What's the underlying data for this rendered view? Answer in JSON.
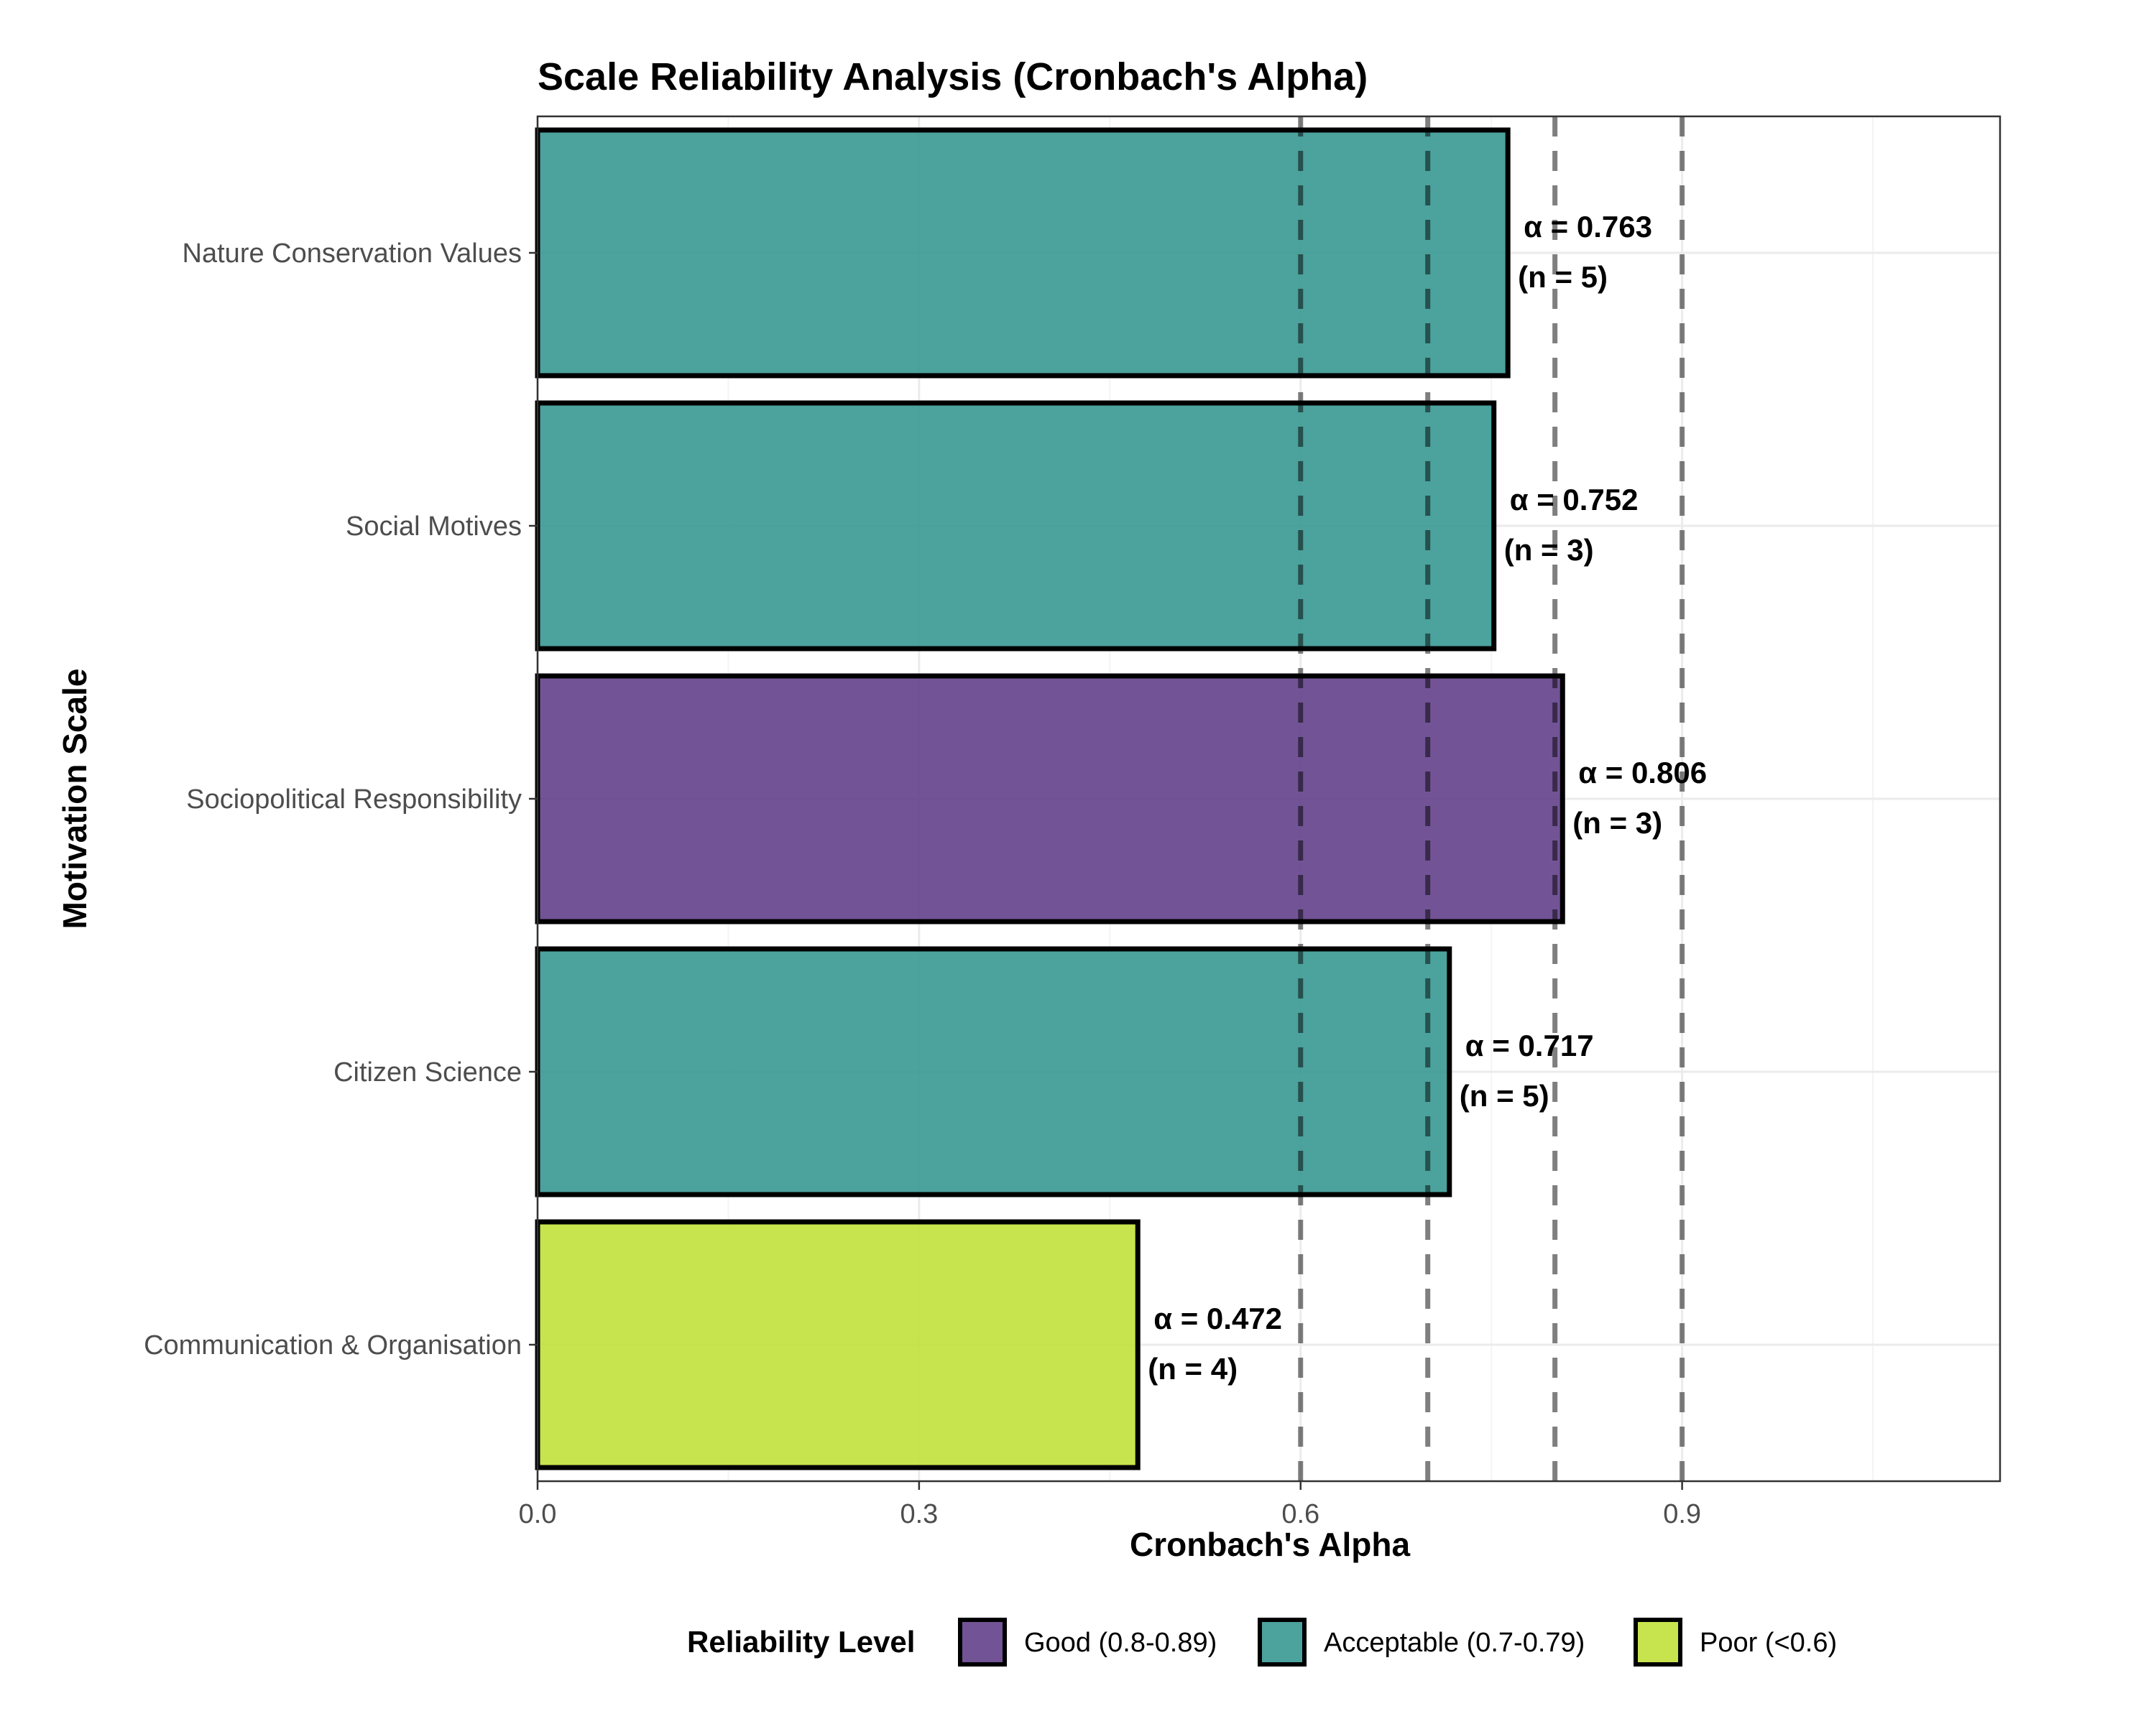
{
  "chart_data": {
    "type": "bar",
    "orientation": "horizontal",
    "title": "Scale Reliability Analysis (Cronbach's Alpha)",
    "xlabel": "Cronbach's Alpha",
    "ylabel": "Motivation Scale",
    "xlim": [
      0,
      1.15
    ],
    "xticks": [
      0.0,
      0.3,
      0.6,
      0.9
    ],
    "xtick_labels": [
      "0.0",
      "0.3",
      "0.6",
      "0.9"
    ],
    "reference_lines": [
      0.6,
      0.7,
      0.8,
      0.9
    ],
    "grid": true,
    "categories": [
      "Nature Conservation Values",
      "Social Motives",
      "Sociopolitical Responsibility",
      "Citizen Science",
      "Communication & Organisation"
    ],
    "values": [
      0.763,
      0.752,
      0.806,
      0.717,
      0.472
    ],
    "n_items": [
      5,
      3,
      3,
      5,
      4
    ],
    "levels": [
      "Acceptable (0.7-0.79)",
      "Acceptable (0.7-0.79)",
      "Good (0.8-0.89)",
      "Acceptable (0.7-0.79)",
      "Poor (<0.6)"
    ],
    "value_labels": [
      "α = 0.763",
      "α = 0.752",
      "α = 0.806",
      "α = 0.717",
      "α = 0.472"
    ],
    "n_labels": [
      "(n = 5)",
      "(n = 3)",
      "(n = 3)",
      "(n = 5)",
      "(n = 4)"
    ],
    "legend": {
      "title": "Reliability Level",
      "placement": "bottom",
      "entries": [
        {
          "label": "Good (0.8-0.89)",
          "color": "#5e3c87"
        },
        {
          "label": "Acceptable (0.7-0.79)",
          "color": "#33958f"
        },
        {
          "label": "Poor (<0.6)",
          "color": "#bfe035"
        }
      ]
    },
    "colors": {
      "Good (0.8-0.89)": "#5e3c87",
      "Acceptable (0.7-0.79)": "#33958f",
      "Poor (<0.6)": "#bfe035"
    }
  }
}
